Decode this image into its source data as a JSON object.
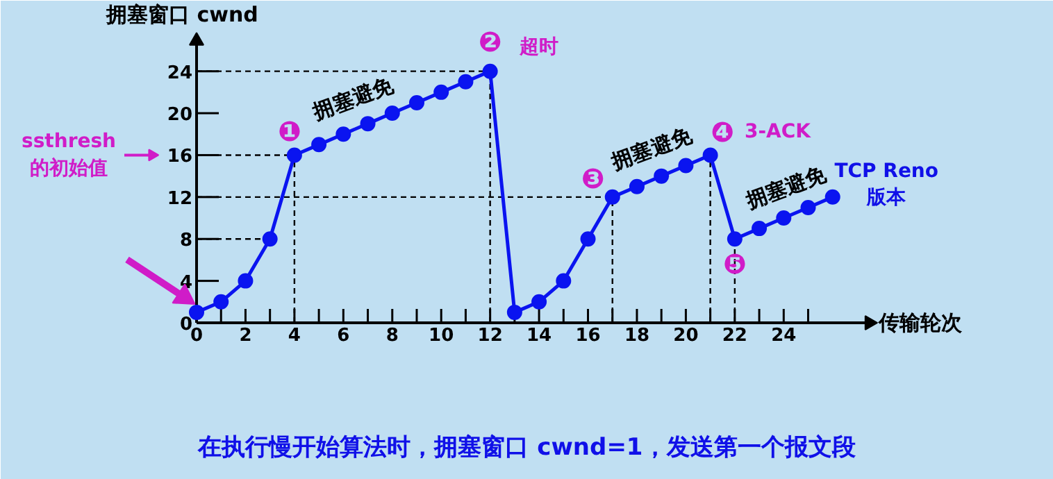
{
  "chart_data": {
    "type": "line",
    "xlabel": "传输轮次",
    "ylabel": "拥塞窗口 cwnd",
    "x": [
      0,
      1,
      2,
      3,
      4,
      5,
      6,
      7,
      8,
      9,
      10,
      11,
      12,
      13,
      14,
      15,
      16,
      17,
      18,
      19,
      20,
      21,
      22,
      23,
      24,
      25,
      26
    ],
    "series": [
      {
        "color": "#0a14f0",
        "values": [
          1,
          2,
          4,
          8,
          16,
          17,
          18,
          19,
          20,
          21,
          22,
          23,
          24,
          1,
          2,
          4,
          8,
          12,
          13,
          14,
          15,
          16,
          8,
          9,
          10,
          11,
          12
        ]
      }
    ],
    "marker": "circle",
    "line_style": "solid",
    "grid": false,
    "xlim": [
      0,
      27.2
    ],
    "ylim": [
      0,
      25.7
    ],
    "xticks": [
      0,
      {
        "value": 1,
        "label": null
      },
      2,
      {
        "value": 3,
        "label": null
      },
      4,
      {
        "value": 5,
        "label": null
      },
      6,
      {
        "value": 7,
        "label": null
      },
      8,
      {
        "value": 9,
        "label": null
      },
      10,
      {
        "value": 11,
        "label": null
      },
      12,
      {
        "value": 13,
        "label": null
      },
      14,
      {
        "value": 15,
        "label": null
      },
      16,
      {
        "value": 17,
        "label": null
      },
      18,
      {
        "value": 19,
        "label": null
      },
      20,
      {
        "value": 21,
        "label": null
      },
      22,
      {
        "value": 23,
        "label": null
      },
      24,
      {
        "value": 25,
        "label": null
      }
    ],
    "yticks": [
      0,
      4,
      8,
      12,
      16,
      20,
      24
    ],
    "ref_lines": [
      {
        "axis": "y",
        "value": 16,
        "line_style": "dashed",
        "color": "#000000"
      },
      {
        "axis": "y",
        "value": 24,
        "line_style": "dashed",
        "color": "#000000"
      },
      {
        "axis": "y",
        "value": 12,
        "line_style": "dashed",
        "color": "#000000"
      },
      {
        "axis": "y",
        "value": 8,
        "line_style": "dashed",
        "color": "#000000"
      },
      {
        "axis": "x",
        "value": 4,
        "line_style": "dashed",
        "color": "#000000"
      },
      {
        "axis": "x",
        "value": 12,
        "line_style": "dashed",
        "color": "#000000"
      },
      {
        "axis": "x",
        "value": 17,
        "line_style": "dashed",
        "color": "#000000"
      },
      {
        "axis": "x",
        "value": 21,
        "line_style": "dashed",
        "color": "#000000"
      },
      {
        "axis": "x",
        "value": 22,
        "line_style": "dashed",
        "color": "#000000"
      }
    ],
    "annotations": [
      "ssthresh\n的初始值",
      "❶",
      "拥塞避免",
      "❷",
      "超时",
      "❸",
      "拥塞避免",
      "❹",
      "3-ACK",
      "❺",
      "拥塞避免",
      "TCP Reno\n版本",
      "在执行慢开始算法时，拥塞窗口 cwnd=1，发送第一个报文段"
    ]
  }
}
